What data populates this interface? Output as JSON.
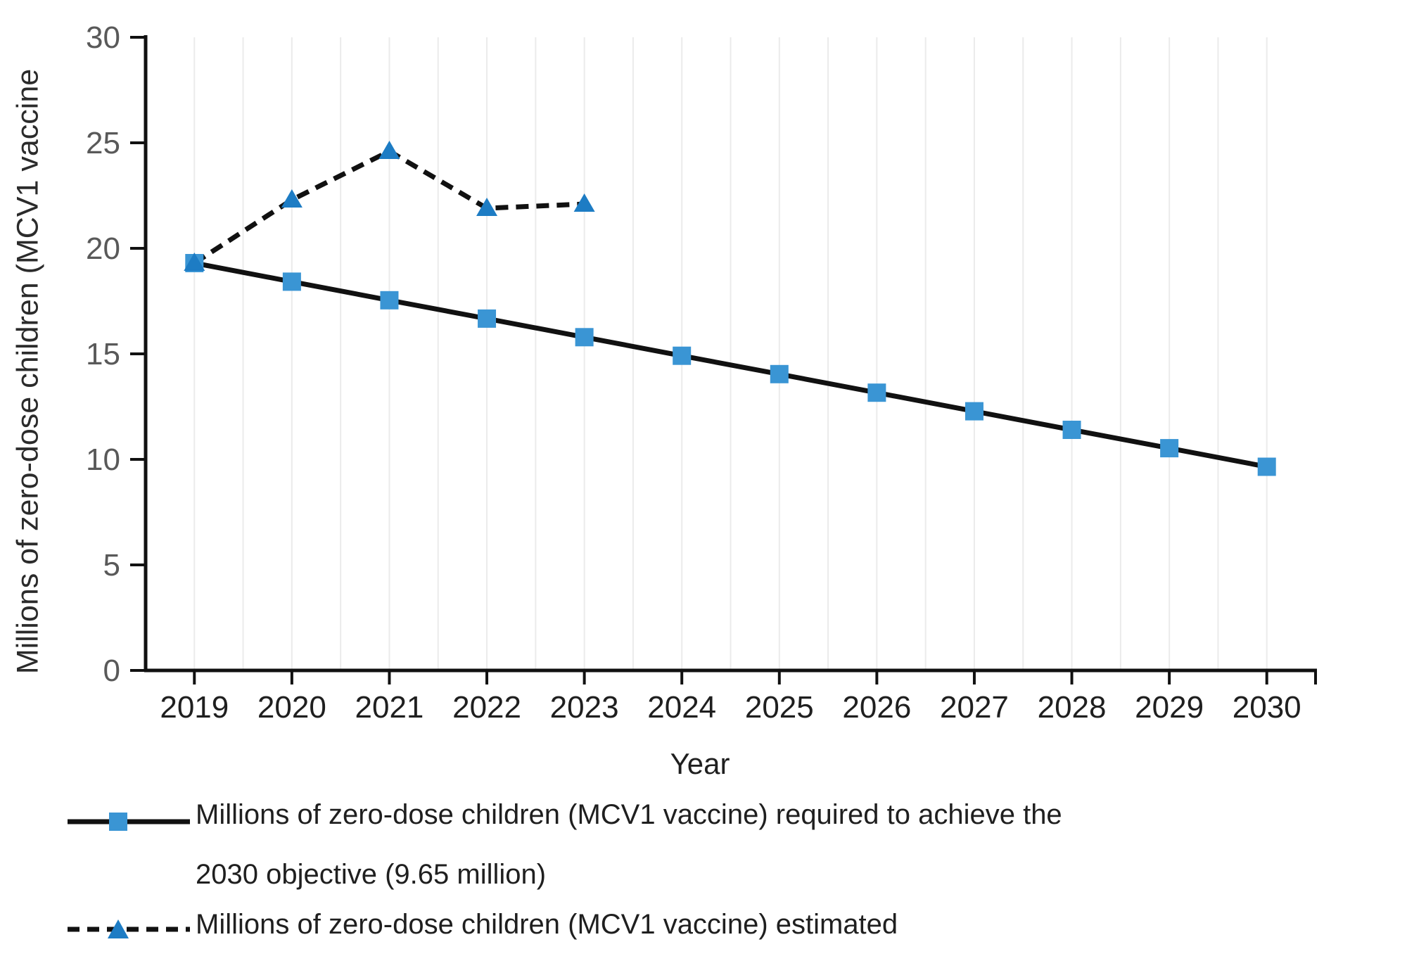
{
  "figure": {
    "y_axis_label": "Millions of zero-dose children (MCV1 vaccine",
    "x_axis_label": "Year"
  },
  "legend": {
    "item1_line1": "Millions of zero-dose children (MCV1 vaccine) required to achieve the",
    "item1_line2": "2030 objective (9.65 million)",
    "item2": "Millions of zero-dose children (MCV1 vaccine) estimated"
  },
  "colors": {
    "square_marker": "#3a95d4",
    "triangle_marker": "#1d7cc4",
    "line_black": "#111111",
    "grid": "#ebebeb",
    "y_tick_label": "#595959",
    "x_tick_label": "#1f1f1f"
  },
  "chart_data": {
    "type": "line",
    "title": "",
    "xlabel": "Year",
    "ylabel": "Millions of zero-dose children (MCV1 vaccine",
    "categories": [
      "2019",
      "2020",
      "2021",
      "2022",
      "2023",
      "2024",
      "2025",
      "2026",
      "2027",
      "2028",
      "2029",
      "2030"
    ],
    "y_ticks": [
      0,
      5,
      10,
      15,
      20,
      25,
      30
    ],
    "ylim": [
      0,
      30
    ],
    "grid": "light vertical gridlines at half-year intervals",
    "legend_position": "bottom-left, stacked",
    "series": [
      {
        "name": "Millions of zero-dose children (MCV1 vaccine) required to achieve the 2030 objective (9.65 million)",
        "marker": "square",
        "line_style": "solid",
        "line_color": "#111111",
        "marker_color": "#3a95d4",
        "values": [
          19.3,
          18.42,
          17.54,
          16.67,
          15.79,
          14.91,
          14.04,
          13.16,
          12.28,
          11.4,
          10.53,
          9.65
        ]
      },
      {
        "name": "Millions of zero-dose children (MCV1 vaccine) estimated",
        "marker": "triangle",
        "line_style": "dashed",
        "line_color": "#111111",
        "marker_color": "#1d7cc4",
        "values": [
          19.3,
          22.3,
          24.6,
          21.9,
          22.1,
          null,
          null,
          null,
          null,
          null,
          null,
          null
        ]
      }
    ]
  }
}
